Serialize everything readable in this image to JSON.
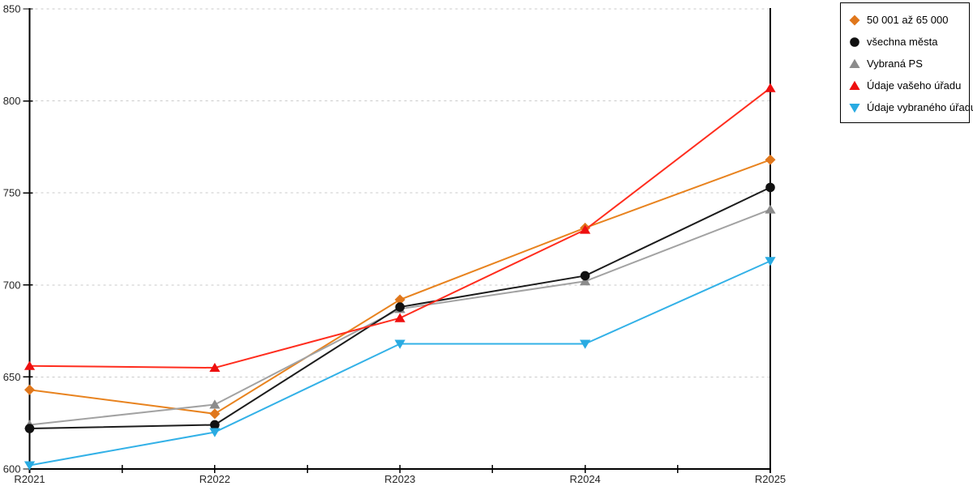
{
  "chart_data": {
    "type": "line",
    "title": "",
    "xlabel": "",
    "ylabel": "",
    "x": [
      "R2021",
      "R2022",
      "R2023",
      "R2024",
      "R2025"
    ],
    "series": [
      {
        "name": "50 001 až 65 000",
        "marker": "diamond",
        "marker_color": "#E0771C",
        "line_color": "#E8831F",
        "values": [
          643,
          630,
          692,
          731,
          768
        ]
      },
      {
        "name": "všechna města",
        "marker": "circle",
        "marker_color": "#111111",
        "line_color": "#1C1C1C",
        "values": [
          622,
          624,
          688,
          705,
          753
        ]
      },
      {
        "name": "Vybraná PS",
        "marker": "triangle-up",
        "marker_color": "#8C8C8C",
        "line_color": "#A2A2A2",
        "values": [
          624,
          635,
          687,
          702,
          741
        ]
      },
      {
        "name": "Údaje vašeho úřadu",
        "marker": "triangle-up",
        "marker_color": "#EE0F0F",
        "line_color": "#FF2D1E",
        "values": [
          656,
          655,
          682,
          730,
          807
        ]
      },
      {
        "name": "Údaje vybraného úřadu",
        "marker": "triangle-down",
        "marker_color": "#29ABE2",
        "line_color": "#33B1E7",
        "values": [
          602,
          620,
          668,
          668,
          713
        ]
      }
    ],
    "ylim": [
      600,
      850
    ],
    "yticks": [
      600,
      650,
      700,
      750,
      800,
      850
    ],
    "grid": "horizontal-dashed",
    "gridline_color": "#C9C9C9",
    "axis_color": "#000000",
    "tick_label_color": "#262626",
    "legend_position": "top-right",
    "legend_border_color": "#000000"
  }
}
